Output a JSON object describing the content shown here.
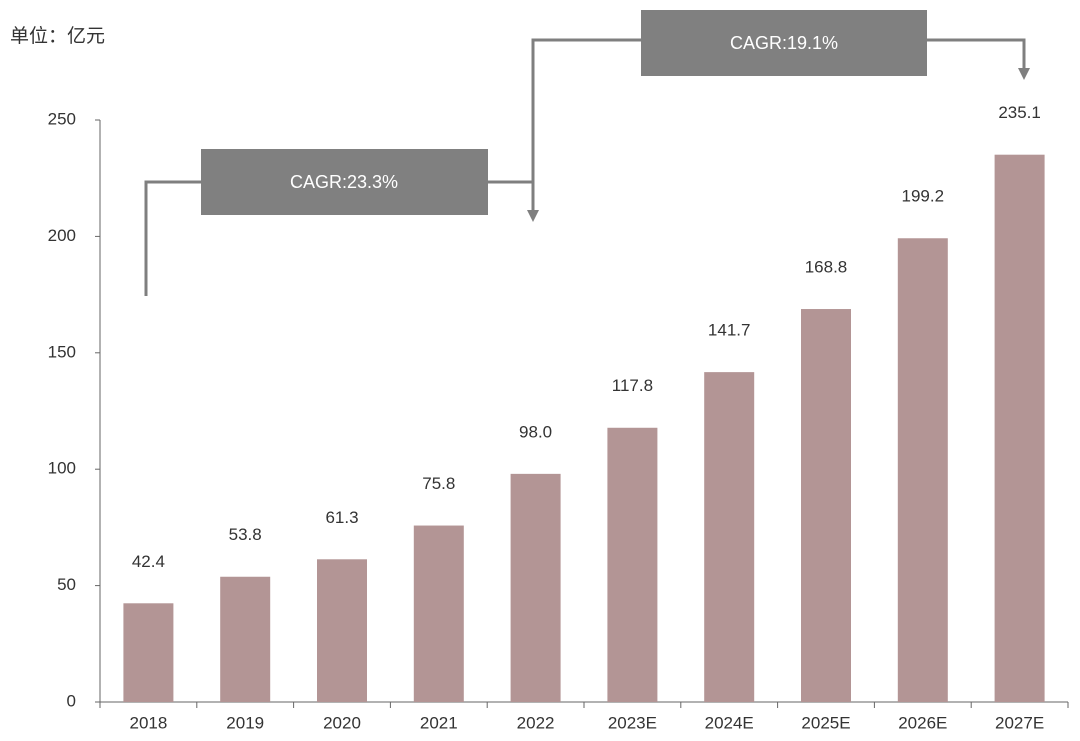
{
  "chart_data": {
    "type": "bar",
    "unit_label": "单位：亿元",
    "categories": [
      "2018",
      "2019",
      "2020",
      "2021",
      "2022",
      "2023E",
      "2024E",
      "2025E",
      "2026E",
      "2027E"
    ],
    "values": [
      42.4,
      53.8,
      61.3,
      75.8,
      98.0,
      117.8,
      141.7,
      168.8,
      199.2,
      235.1
    ],
    "value_labels": [
      "42.4",
      "53.8",
      "61.3",
      "75.8",
      "98.0",
      "117.8",
      "141.7",
      "168.8",
      "199.2",
      "235.1"
    ],
    "color": "#b39595",
    "ylim": [
      0,
      250
    ],
    "yticks": [
      0,
      50,
      100,
      150,
      200,
      250
    ],
    "annotations": [
      "CAGR:23.3%",
      "CAGR:19.1%"
    ]
  }
}
